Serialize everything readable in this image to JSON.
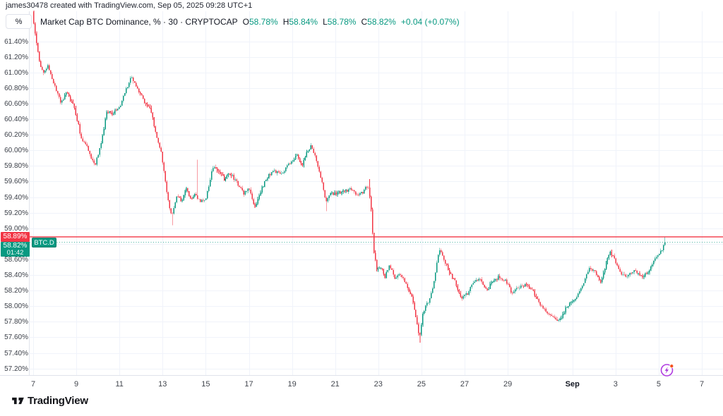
{
  "watermark": "james30478 created with TradingView.com, Sep 05, 2025 09:28 UTC+1",
  "toolbar": {
    "unit_label": "%"
  },
  "legend": {
    "title": "Market Cap BTC Dominance, % · 30 · CRYPTOCAP",
    "ohlc": [
      {
        "key": "O",
        "value": "58.78%"
      },
      {
        "key": "H",
        "value": "58.84%"
      },
      {
        "key": "L",
        "value": "58.78%"
      },
      {
        "key": "C",
        "value": "58.82%"
      }
    ],
    "change": "+0.04 (+0.07%)"
  },
  "price_scale": {
    "labels": [
      "61.40%",
      "61.20%",
      "61.00%",
      "60.80%",
      "60.60%",
      "60.40%",
      "60.20%",
      "60.00%",
      "59.80%",
      "59.60%",
      "59.40%",
      "59.20%",
      "59.00%",
      "58.60%",
      "58.40%",
      "58.20%",
      "58.00%",
      "57.80%",
      "57.60%",
      "57.40%",
      "57.20%"
    ]
  },
  "alert_line": {
    "price": 58.89,
    "label": "58.89%"
  },
  "current_price": {
    "price": 58.82,
    "label": "58.82%",
    "countdown": "01:42"
  },
  "symbol_badge": "BTC.D",
  "time_scale": {
    "ticks": [
      {
        "label": "7",
        "d": 0,
        "bold": false
      },
      {
        "label": "9",
        "d": 2,
        "bold": false
      },
      {
        "label": "11",
        "d": 4,
        "bold": false
      },
      {
        "label": "13",
        "d": 6,
        "bold": false
      },
      {
        "label": "15",
        "d": 8,
        "bold": false
      },
      {
        "label": "17",
        "d": 10,
        "bold": false
      },
      {
        "label": "19",
        "d": 12,
        "bold": false
      },
      {
        "label": "21",
        "d": 14,
        "bold": false
      },
      {
        "label": "23",
        "d": 16,
        "bold": false
      },
      {
        "label": "25",
        "d": 18,
        "bold": false
      },
      {
        "label": "27",
        "d": 20,
        "bold": false
      },
      {
        "label": "29",
        "d": 22,
        "bold": false
      },
      {
        "label": "Sep",
        "d": 25,
        "bold": true
      },
      {
        "label": "3",
        "d": 27,
        "bold": false
      },
      {
        "label": "5",
        "d": 29,
        "bold": false
      },
      {
        "label": "7",
        "d": 31,
        "bold": false
      }
    ]
  },
  "footer": {
    "brand": "TradingView"
  },
  "colors": {
    "up": "#089981",
    "down": "#f23645",
    "alert": "#f23645",
    "current": "#089981",
    "grid": "#f0f3fa",
    "axis_border": "#e0e3eb",
    "ai_purple": "#b03be0",
    "ai_dot": "#f4511e"
  },
  "chart_data": {
    "type": "candlestick",
    "title": "Market Cap BTC Dominance",
    "symbol": "CRYPTOCAP BTC.D",
    "interval_minutes": 30,
    "unit": "%",
    "ohlc_current": {
      "open": 58.78,
      "high": 58.84,
      "low": 58.78,
      "close": 58.82,
      "change": 0.04,
      "change_pct": 0.07
    },
    "y_grid": {
      "min": 57.2,
      "max": 61.4,
      "step": 0.2
    },
    "x_axis_note": "d = days since Aug 7; ticks every 2 days, Sep = Sep 1",
    "t_end": 29.32,
    "candles_n": 452,
    "anchors": [
      [
        0,
        61.76
      ],
      [
        0.12,
        61.5
      ],
      [
        0.3,
        61.18
      ],
      [
        0.5,
        60.98
      ],
      [
        0.72,
        61.08
      ],
      [
        0.95,
        60.9
      ],
      [
        1.3,
        60.63
      ],
      [
        1.6,
        60.74
      ],
      [
        1.95,
        60.55
      ],
      [
        2.25,
        60.18
      ],
      [
        2.55,
        60.03
      ],
      [
        2.9,
        59.8
      ],
      [
        3.15,
        60.05
      ],
      [
        3.45,
        60.5
      ],
      [
        3.7,
        60.48
      ],
      [
        4,
        60.52
      ],
      [
        4.3,
        60.75
      ],
      [
        4.6,
        60.95
      ],
      [
        4.85,
        60.78
      ],
      [
        5.2,
        60.62
      ],
      [
        5.5,
        60.52
      ],
      [
        5.75,
        60.18
      ],
      [
        6,
        59.93
      ],
      [
        6.25,
        59.4
      ],
      [
        6.45,
        59.15
      ],
      [
        6.7,
        59.45
      ],
      [
        6.9,
        59.33
      ],
      [
        7.1,
        59.52
      ],
      [
        7.35,
        59.36
      ],
      [
        7.55,
        59.45
      ],
      [
        7.8,
        59.33
      ],
      [
        8.05,
        59.4
      ],
      [
        8.35,
        59.78
      ],
      [
        8.6,
        59.75
      ],
      [
        8.9,
        59.62
      ],
      [
        9.15,
        59.72
      ],
      [
        9.5,
        59.58
      ],
      [
        9.8,
        59.45
      ],
      [
        10.05,
        59.5
      ],
      [
        10.3,
        59.24
      ],
      [
        10.6,
        59.5
      ],
      [
        10.9,
        59.66
      ],
      [
        11.2,
        59.75
      ],
      [
        11.5,
        59.68
      ],
      [
        11.8,
        59.8
      ],
      [
        12.05,
        59.85
      ],
      [
        12.25,
        59.95
      ],
      [
        12.5,
        59.8
      ],
      [
        12.75,
        60
      ],
      [
        12.95,
        60.06
      ],
      [
        13.15,
        59.88
      ],
      [
        13.4,
        59.62
      ],
      [
        13.6,
        59.33
      ],
      [
        13.8,
        59.45
      ],
      [
        14.05,
        59.44
      ],
      [
        14.35,
        59.47
      ],
      [
        14.7,
        59.5
      ],
      [
        15,
        59.44
      ],
      [
        15.3,
        59.46
      ],
      [
        15.55,
        59.55
      ],
      [
        15.68,
        59.35
      ],
      [
        15.8,
        58.75
      ],
      [
        15.95,
        58.48
      ],
      [
        16.15,
        58.5
      ],
      [
        16.35,
        58.38
      ],
      [
        16.55,
        58.52
      ],
      [
        16.8,
        58.36
      ],
      [
        17.05,
        58.42
      ],
      [
        17.35,
        58.25
      ],
      [
        17.6,
        58.12
      ],
      [
        17.82,
        57.8
      ],
      [
        17.95,
        57.58
      ],
      [
        18.1,
        57.92
      ],
      [
        18.4,
        58.08
      ],
      [
        18.65,
        58.35
      ],
      [
        18.85,
        58.75
      ],
      [
        19.05,
        58.6
      ],
      [
        19.3,
        58.45
      ],
      [
        19.6,
        58.32
      ],
      [
        19.9,
        58.1
      ],
      [
        20.15,
        58.16
      ],
      [
        20.45,
        58.3
      ],
      [
        20.75,
        58.36
      ],
      [
        21.05,
        58.2
      ],
      [
        21.35,
        58.33
      ],
      [
        21.65,
        58.38
      ],
      [
        21.95,
        58.32
      ],
      [
        22.25,
        58.16
      ],
      [
        22.55,
        58.25
      ],
      [
        22.85,
        58.27
      ],
      [
        23.15,
        58.22
      ],
      [
        23.45,
        58.06
      ],
      [
        23.75,
        57.96
      ],
      [
        24.05,
        57.86
      ],
      [
        24.4,
        57.8
      ],
      [
        24.7,
        57.96
      ],
      [
        25,
        58.05
      ],
      [
        25.3,
        58.16
      ],
      [
        25.6,
        58.34
      ],
      [
        25.85,
        58.5
      ],
      [
        26.1,
        58.44
      ],
      [
        26.35,
        58.3
      ],
      [
        26.6,
        58.55
      ],
      [
        26.75,
        58.7
      ],
      [
        27,
        58.6
      ],
      [
        27.3,
        58.42
      ],
      [
        27.6,
        58.38
      ],
      [
        27.9,
        58.48
      ],
      [
        28.2,
        58.38
      ],
      [
        28.5,
        58.42
      ],
      [
        28.8,
        58.58
      ],
      [
        29.05,
        58.66
      ],
      [
        29.2,
        58.74
      ],
      [
        29.32,
        58.82
      ]
    ],
    "special_wicks": [
      [
        6.45,
        "l",
        59.04
      ],
      [
        7.62,
        "h",
        59.88
      ],
      [
        13.62,
        "l",
        59.22
      ],
      [
        15.62,
        "h",
        59.63
      ],
      [
        17.95,
        "l",
        57.53
      ],
      [
        29.3,
        "h",
        58.89
      ]
    ]
  }
}
